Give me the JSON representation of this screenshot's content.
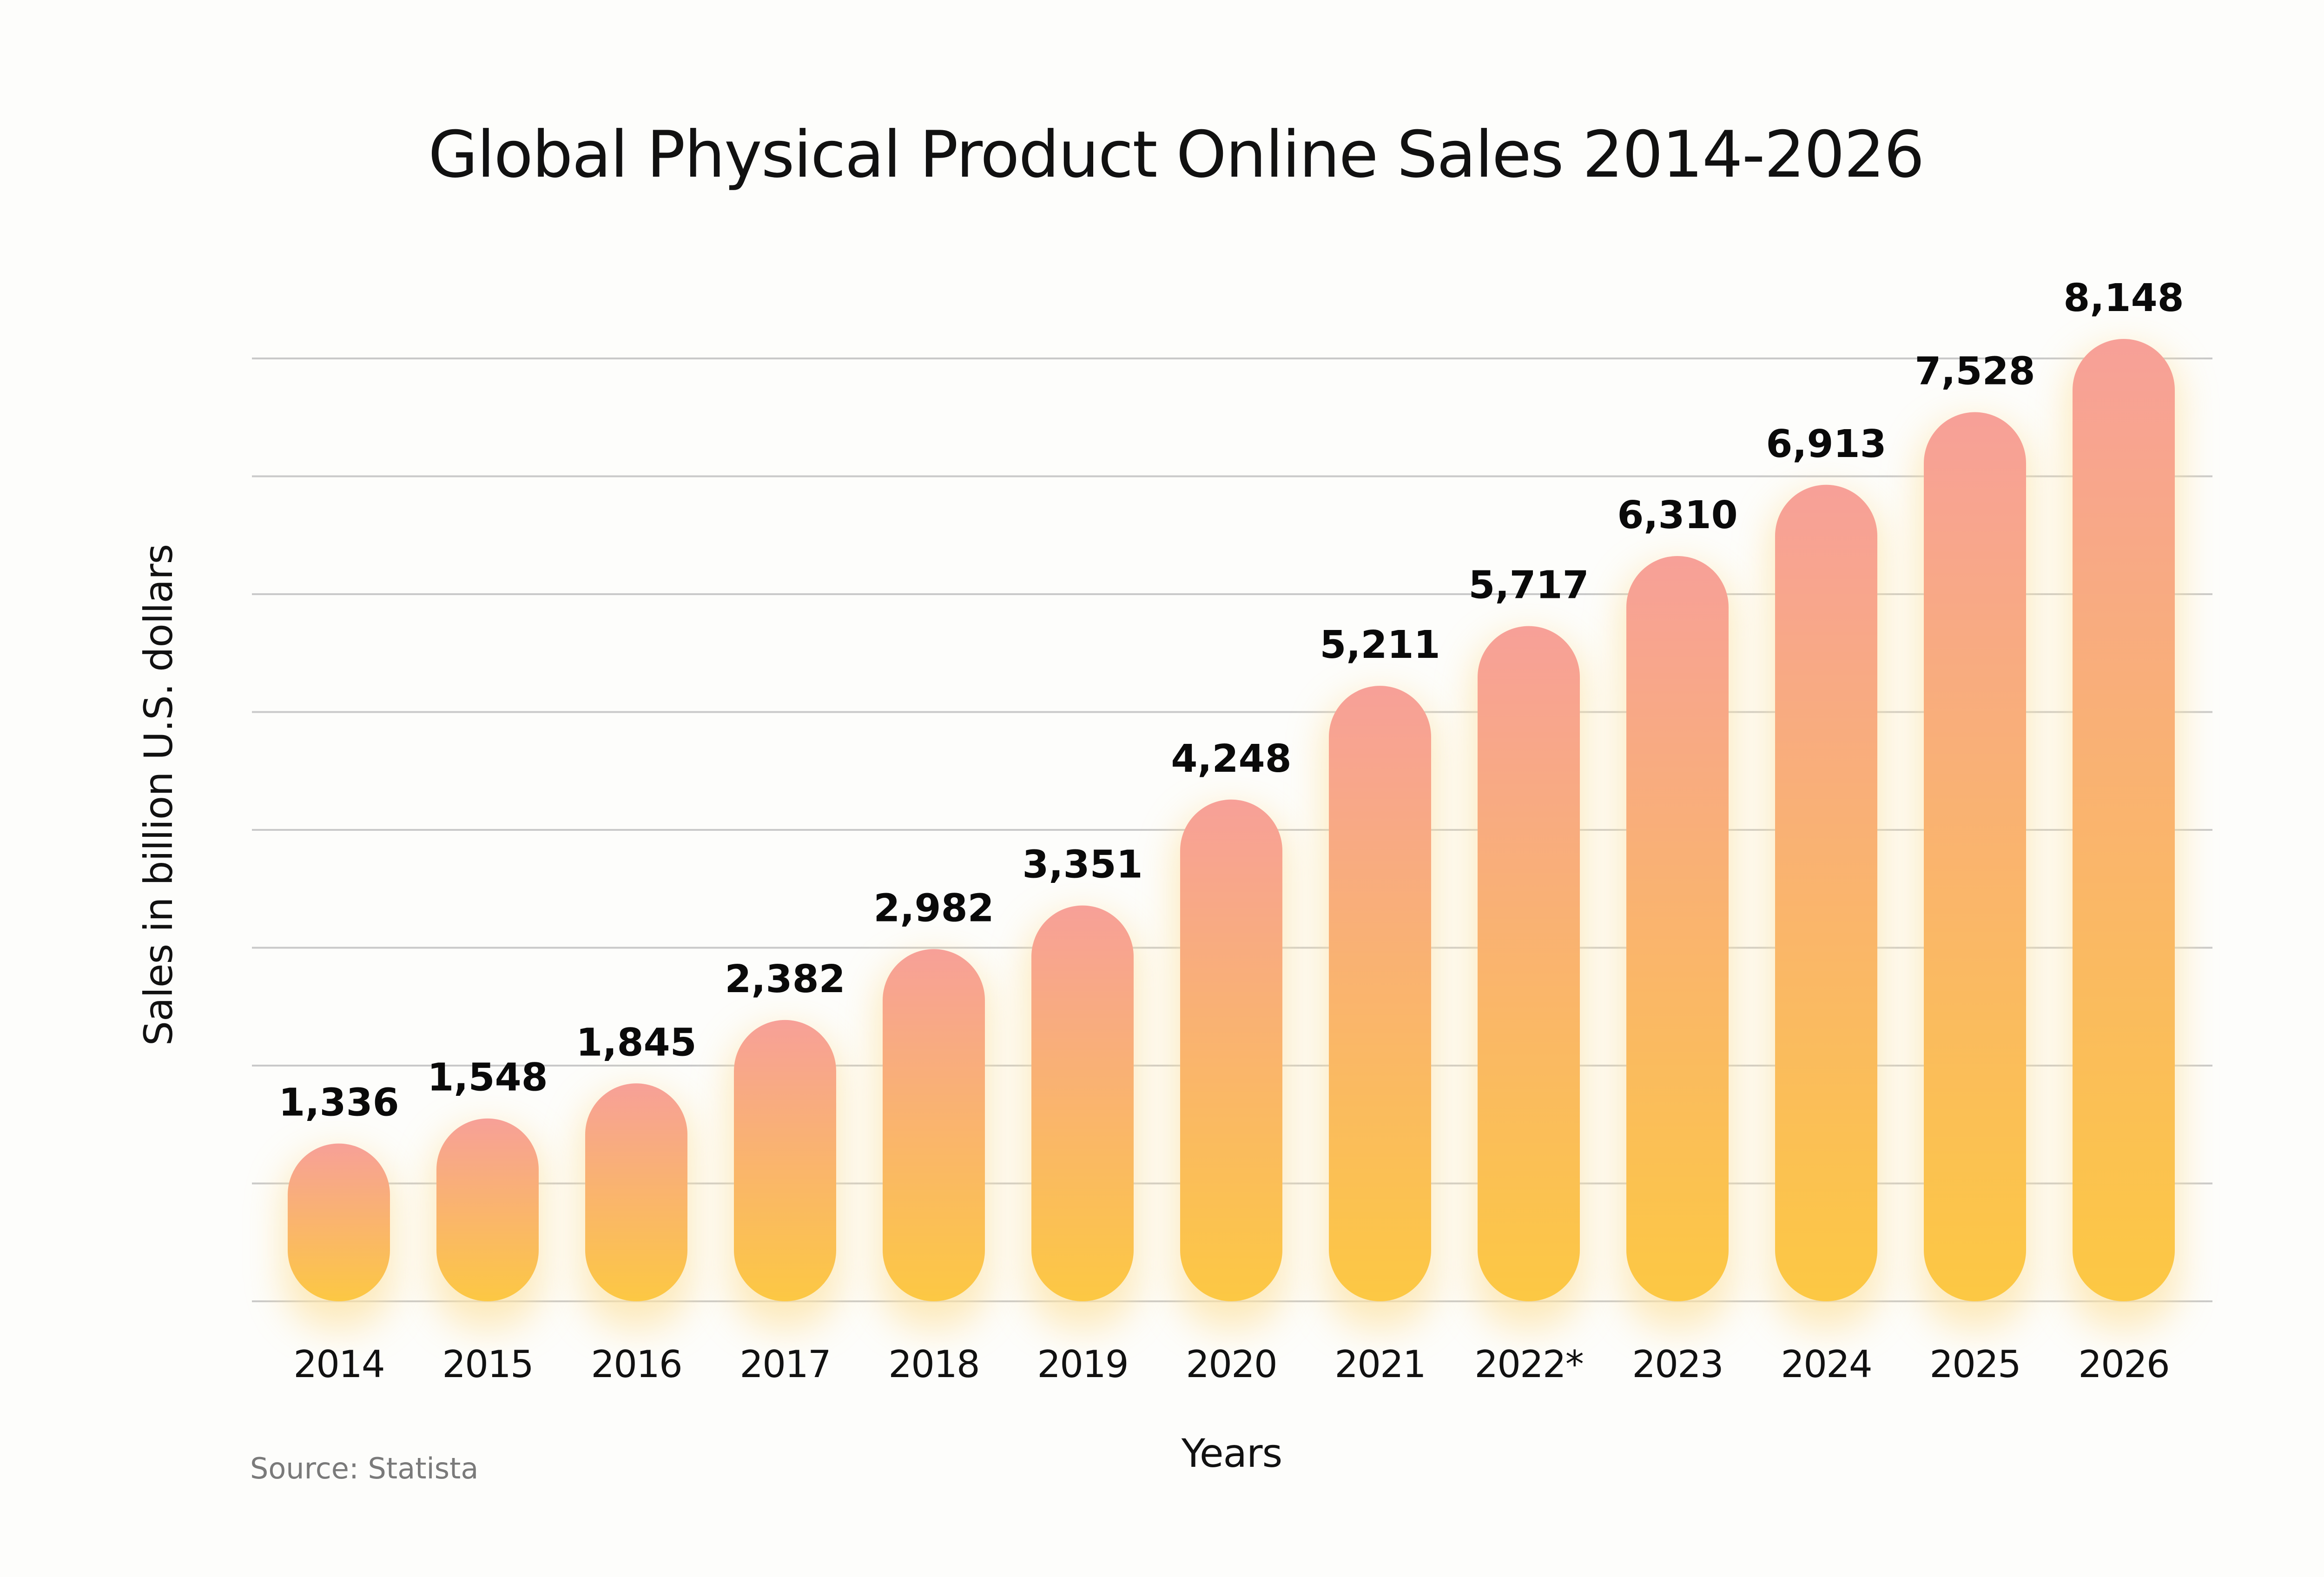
{
  "chart_data": {
    "type": "bar",
    "title": "Global Physical Product Online Sales 2014-2026",
    "xlabel": "Years",
    "ylabel": "Sales in billion U.S. dollars",
    "source": "Source: Statista",
    "categories": [
      "2014",
      "2015",
      "2016",
      "2017",
      "2018",
      "2019",
      "2020",
      "2021",
      "2022*",
      "2023",
      "2024",
      "2025",
      "2026"
    ],
    "values": [
      1336,
      1548,
      1845,
      2382,
      2982,
      3351,
      4248,
      5211,
      5717,
      6310,
      6913,
      7528,
      8148
    ],
    "value_labels": [
      "1,336",
      "1,548",
      "1,845",
      "2,382",
      "2,982",
      "3,351",
      "4,248",
      "5,211",
      "5,717",
      "6,310",
      "6,913",
      "7,528",
      "8,148"
    ],
    "ylim": [
      0,
      8148
    ],
    "y_tick_labels_shown": false,
    "grid": true,
    "gridline_count": 9,
    "legend": "none",
    "colors": {
      "bar_top": "#f7a098",
      "bar_bottom": "#fcc843",
      "glow": "#fde3a6",
      "gridline": "#c9c9c9",
      "text": "#111111",
      "source_text": "#7a7a7a"
    }
  }
}
